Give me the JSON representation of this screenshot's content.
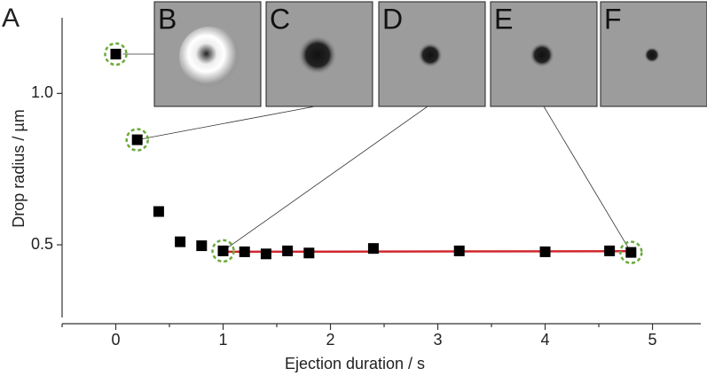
{
  "chart_data": {
    "type": "scatter",
    "panel_label": "A",
    "xlabel": "Ejection duration / s",
    "ylabel": "Drop radius / µm",
    "x": [
      0,
      0.2,
      0.4,
      0.6,
      0.8,
      1.0,
      1.2,
      1.4,
      1.6,
      1.8,
      2.4,
      3.2,
      4.0,
      4.6,
      4.8
    ],
    "values": [
      1.13,
      0.847,
      0.61,
      0.51,
      0.497,
      0.48,
      0.477,
      0.47,
      0.48,
      0.473,
      0.488,
      0.48,
      0.477,
      0.48,
      0.475
    ],
    "color": "#000000",
    "highlighted": [
      0,
      1,
      5,
      14
    ],
    "highlight_color": "#6aaa3a",
    "fit": {
      "x": [
        1.0,
        4.8
      ],
      "values": [
        0.477,
        0.479
      ],
      "color": "#d0282e"
    },
    "xlim": [
      -0.5,
      5.45
    ],
    "ylim": [
      0.26,
      1.25
    ],
    "xticks": [
      0,
      1,
      2,
      3,
      4,
      5
    ],
    "xminorticks": [
      -0.5,
      0.5,
      1.5,
      2.5,
      3.5,
      4.5
    ],
    "yticks": [
      {
        "value": 0.5,
        "label": "0.5"
      },
      {
        "value": 1.0,
        "label": "1.0"
      }
    ],
    "grid": false,
    "insets": [
      {
        "label": "B",
        "point": 0
      },
      {
        "label": "C",
        "point": 1
      },
      {
        "label": "D",
        "point": 5
      },
      {
        "label": "E",
        "point": 14
      },
      {
        "label": "F"
      }
    ]
  }
}
